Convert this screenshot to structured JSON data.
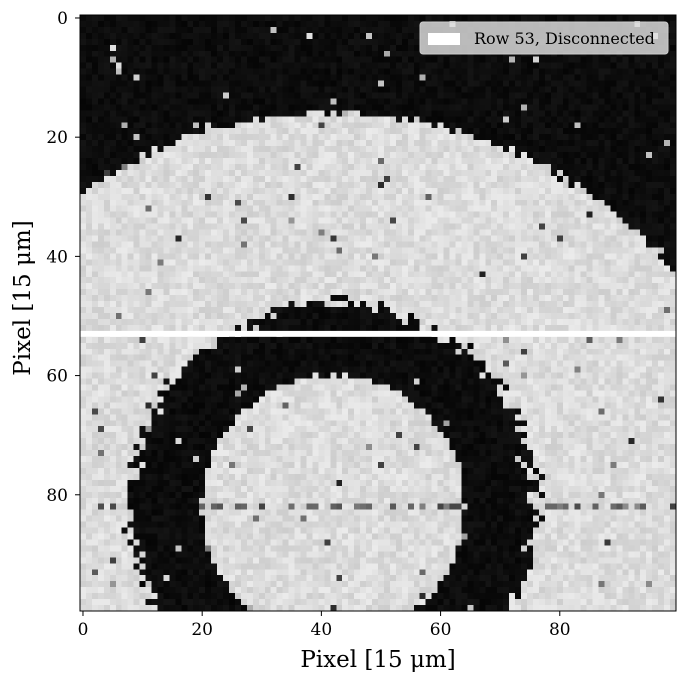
{
  "chart_data": {
    "type": "heatmap",
    "image": {
      "rows": 100,
      "cols": 100,
      "colormap": "grayscale",
      "background_value": 0.0,
      "bright_value": 0.85,
      "features": [
        {
          "kind": "disk-bright",
          "center": [
            42,
            91
          ],
          "radius": 75
        },
        {
          "kind": "ring-dark",
          "center": [
            42,
            82
          ],
          "inner_radius": 22,
          "outer_radius": 34
        },
        {
          "kind": "disk-bright",
          "center": [
            42,
            82
          ],
          "radius": 22
        },
        {
          "kind": "bright-line",
          "row": 53
        }
      ]
    },
    "highlight_row": 53,
    "xlabel": "Pixel [15 μm]",
    "ylabel": "Pixel [15 μm]",
    "xlim": [
      -0.5,
      99.5
    ],
    "ylim": [
      99.5,
      -0.5
    ],
    "xticks": [
      0,
      20,
      40,
      60,
      80
    ],
    "yticks": [
      0,
      20,
      40,
      60,
      80
    ],
    "legend": {
      "placement": "top-right",
      "entries": [
        {
          "label": "Row 53, Disconnected",
          "color": "#ffffff"
        }
      ]
    }
  }
}
